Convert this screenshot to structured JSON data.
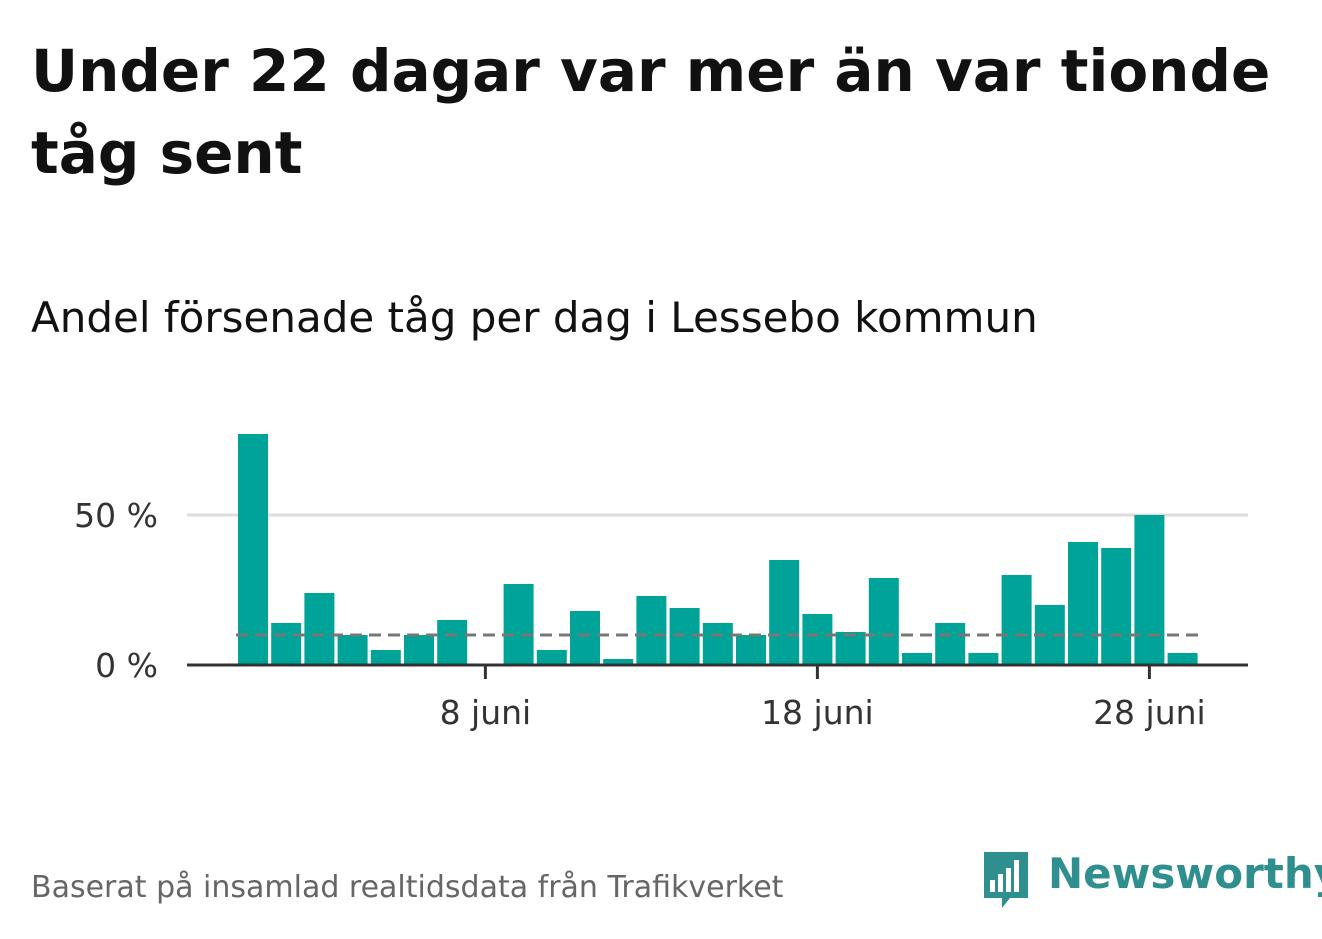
{
  "title": "Under 22 dagar var mer än var tionde tåg sent",
  "subtitle": "Andel försenade tåg per dag i Lessebo kommun",
  "footer": "Baserat på insamlad realtidsdata från Trafikverket",
  "logo_text": "Newsworthy",
  "colors": {
    "bar": "#00a398",
    "reference_line": "#777777",
    "grid": "#dddddd",
    "axis": "#333333",
    "logo": "#2f8f8f"
  },
  "chart_data": {
    "type": "bar",
    "x_unit": "day of June",
    "x": [
      1,
      2,
      3,
      4,
      5,
      6,
      7,
      8,
      9,
      10,
      11,
      12,
      13,
      14,
      15,
      16,
      17,
      18,
      19,
      20,
      21,
      22,
      23,
      24,
      25,
      26,
      27,
      28,
      29
    ],
    "values": [
      77,
      14,
      24,
      10,
      5,
      10,
      15,
      0,
      27,
      5,
      18,
      2,
      23,
      19,
      14,
      10,
      35,
      17,
      11,
      29,
      4,
      14,
      4,
      30,
      20,
      41,
      39,
      50,
      4
    ],
    "reference_value": 10,
    "ylim": [
      0,
      80
    ],
    "yticks": [
      0,
      50
    ],
    "ytick_labels": [
      "0 %",
      "50 %"
    ],
    "xticks": [
      8,
      18,
      28
    ],
    "xtick_labels": [
      "8 juni",
      "18 juni",
      "28 juni"
    ],
    "grid": true
  }
}
